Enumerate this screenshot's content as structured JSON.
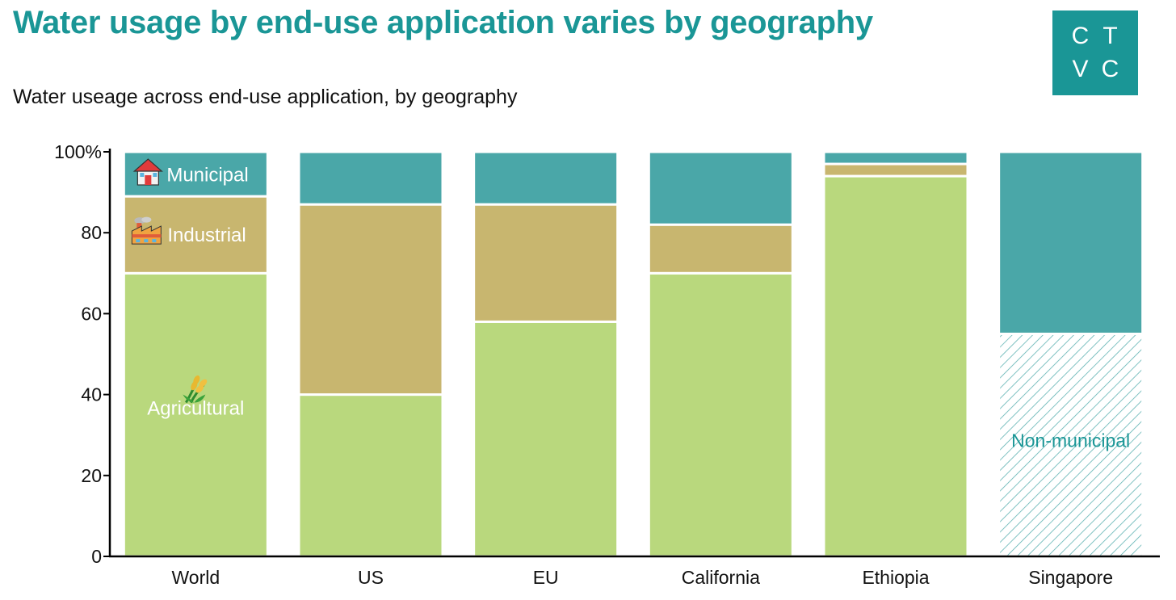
{
  "header": {
    "title": "Water usage by end-use application varies by geography",
    "subtitle": "Water useage across end-use application, by geography"
  },
  "logo": {
    "letters": [
      "C",
      "T",
      "V",
      "C"
    ]
  },
  "colors": {
    "agricultural": "#b9d87d",
    "industrial": "#c8b66f",
    "municipal": "#4aa7a8",
    "non_municipal": "#5fb3b3",
    "accent": "#1a9696"
  },
  "chart_data": {
    "type": "bar",
    "stacked": true,
    "categories": [
      "World",
      "US",
      "EU",
      "California",
      "Ethiopia",
      "Singapore"
    ],
    "series": [
      {
        "name": "Agricultural",
        "key": "agricultural",
        "values": [
          70,
          40,
          58,
          70,
          94,
          0
        ]
      },
      {
        "name": "Non-municipal",
        "key": "non_municipal",
        "values": [
          0,
          0,
          0,
          0,
          0,
          55
        ]
      },
      {
        "name": "Industrial",
        "key": "industrial",
        "values": [
          19,
          47,
          29,
          12,
          3,
          0
        ]
      },
      {
        "name": "Municipal",
        "key": "municipal",
        "values": [
          11,
          13,
          13,
          18,
          3,
          45
        ]
      }
    ],
    "ylim": [
      0,
      100
    ],
    "yticks": [
      0,
      20,
      40,
      60,
      80,
      100
    ],
    "ytick_labels": [
      "0",
      "20",
      "40",
      "60",
      "80",
      "100%"
    ],
    "grid": false,
    "annotations": [
      {
        "text": "Municipal",
        "category": "World",
        "series": "municipal",
        "icon": "house-icon"
      },
      {
        "text": "Industrial",
        "category": "World",
        "series": "industrial",
        "icon": "factory-icon"
      },
      {
        "text": "Agricultural",
        "category": "World",
        "series": "agricultural",
        "icon": "wheat-icon"
      },
      {
        "text": "Non-municipal",
        "category": "Singapore",
        "series": "non_municipal"
      }
    ]
  }
}
